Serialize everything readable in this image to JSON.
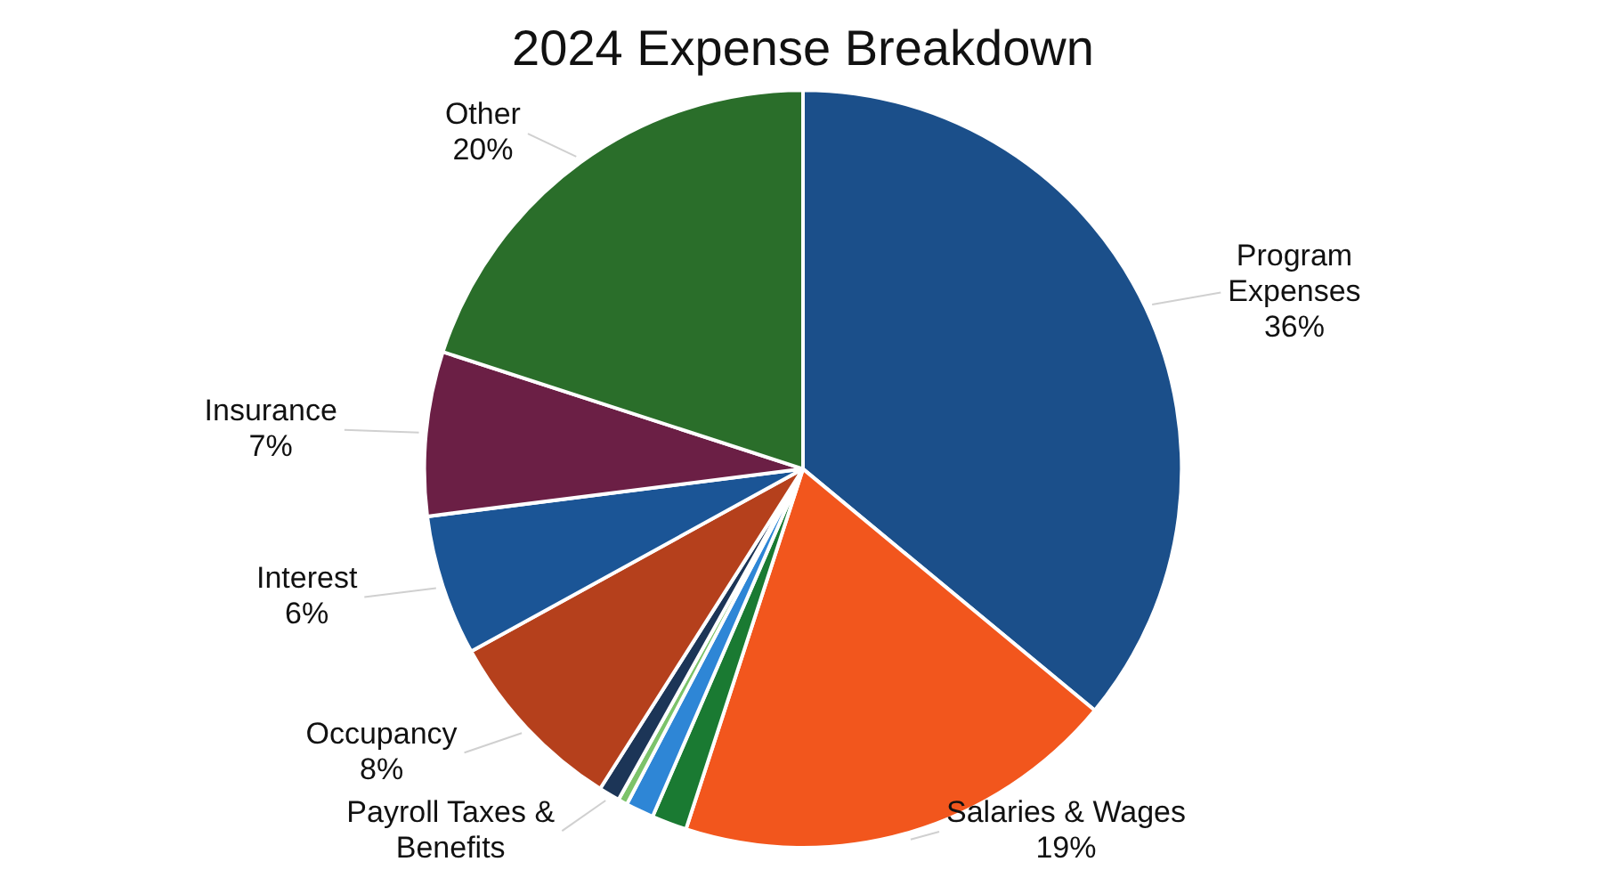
{
  "chart_data": {
    "type": "pie",
    "title": "2024 Expense Breakdown",
    "categories": [
      "Program Expenses",
      "Salaries & Wages",
      null,
      null,
      null,
      "Payroll Taxes & Benefits",
      "Occupancy",
      "Interest",
      "Insurance",
      "Other"
    ],
    "values": [
      36,
      19,
      1.5,
      1.2,
      0.4,
      0.9,
      8,
      6,
      7,
      20
    ],
    "value_labels": [
      "36%",
      "19%",
      null,
      null,
      null,
      null,
      "8%",
      "6%",
      "7%",
      "20%"
    ],
    "colors": [
      "#1b4f8a",
      "#f2561d",
      "#1a7a32",
      "#2e86d6",
      "#7cc36a",
      "#1c3557",
      "#b5401c",
      "#1b5596",
      "#6b1f45",
      "#2a6e2a"
    ],
    "legend": false
  }
}
